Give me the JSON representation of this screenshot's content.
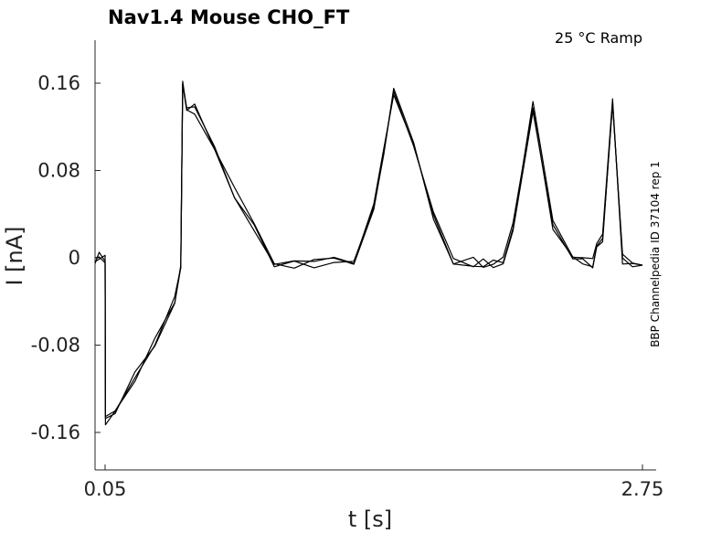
{
  "chart_data": {
    "type": "line",
    "title": "Nav1.4  Mouse  CHO_FT",
    "condition_label": "25 °C  Ramp",
    "side_label": "BBP Channelpedia ID 37104 rep 1",
    "xlabel": "t [s]",
    "ylabel": "I [nA]",
    "xlim": [
      0.0,
      2.76
    ],
    "ylim": [
      -0.195,
      0.2
    ],
    "x_ticks": [
      0.05,
      2.75
    ],
    "x_tick_labels": [
      "0.05",
      "2.75"
    ],
    "y_ticks": [
      0.16,
      0.08,
      0,
      -0.08,
      -0.16
    ],
    "y_tick_labels": [
      "0.16",
      "0.08",
      "0",
      "-0.08",
      "-0.16"
    ],
    "grid": false,
    "color": "#000000",
    "series": [
      {
        "x": [
          0.0,
          0.02,
          0.05,
          0.052,
          0.1,
          0.2,
          0.3,
          0.4,
          0.43,
          0.44,
          0.46,
          0.5,
          0.6,
          0.7,
          0.8,
          0.9,
          1.0,
          1.1,
          1.2,
          1.3,
          1.4,
          1.45,
          1.5,
          1.6,
          1.7,
          1.8,
          1.9,
          1.95,
          2.0,
          2.05,
          2.1,
          2.2,
          2.3,
          2.4,
          2.45,
          2.5,
          2.52,
          2.55,
          2.6,
          2.65,
          2.7,
          2.75
        ],
        "y": [
          0.0,
          0.0,
          0.0,
          -0.15,
          -0.14,
          -0.11,
          -0.075,
          -0.04,
          -0.01,
          0.16,
          0.14,
          0.135,
          0.1,
          0.06,
          0.03,
          -0.005,
          -0.005,
          -0.005,
          -0.005,
          -0.003,
          0.05,
          0.1,
          0.15,
          0.1,
          0.04,
          -0.005,
          -0.005,
          -0.005,
          -0.005,
          0.0,
          0.03,
          0.14,
          0.03,
          -0.005,
          -0.005,
          -0.005,
          0.01,
          0.02,
          0.145,
          0.0,
          -0.003,
          -0.005
        ]
      }
    ]
  }
}
